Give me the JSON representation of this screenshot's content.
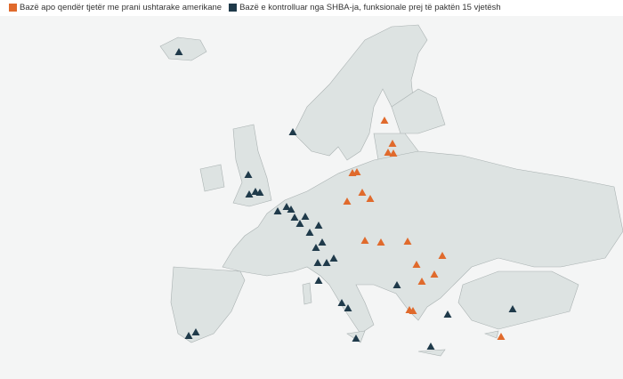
{
  "legend": {
    "items": [
      {
        "label": "Bazë apo qendër tjetër me prani ushtarake amerikane",
        "color": "#e06a2c"
      },
      {
        "label": "Bazë e kontrolluar nga SHBA-ja, funksionale prej të paktën 15 vjetësh",
        "color": "#1f3a4a"
      }
    ]
  },
  "map": {
    "region": "Europe",
    "land_color": "#dde3e2",
    "border_color": "#a9b1b1",
    "marker_shape": "triangle"
  }
}
